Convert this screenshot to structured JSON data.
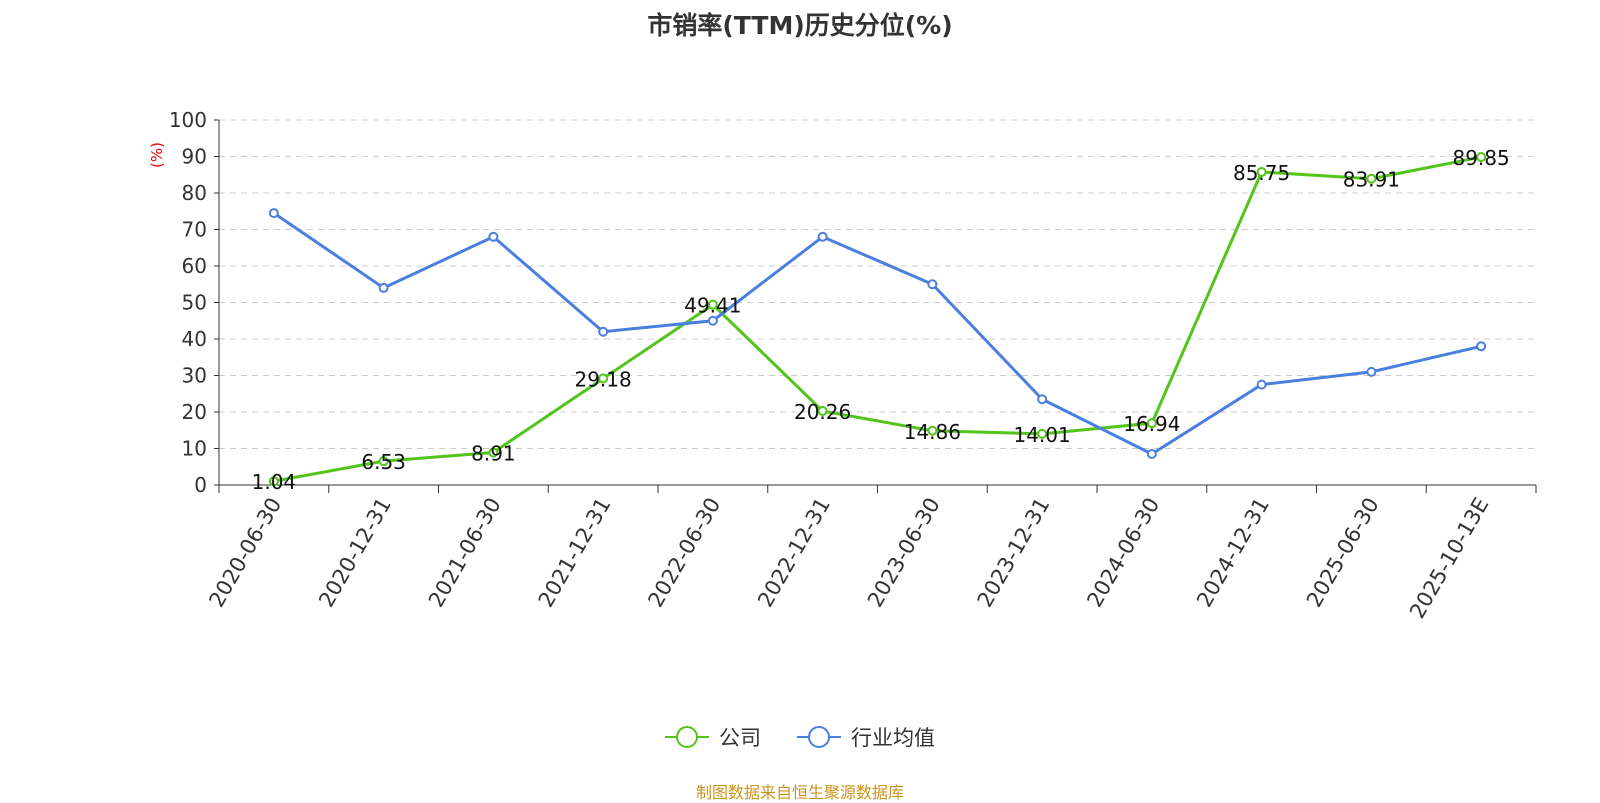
{
  "chart_data": {
    "type": "line",
    "title": "市销率(TTM)历史分位(%)",
    "ylabel": "(%)",
    "xlabel": "",
    "ylim": [
      0,
      100
    ],
    "yticks": [
      0,
      10,
      20,
      30,
      40,
      50,
      60,
      70,
      80,
      90,
      100
    ],
    "grid": true,
    "legend_position": "bottom",
    "categories": [
      "2020-06-30",
      "2020-12-31",
      "2021-06-30",
      "2021-12-31",
      "2022-06-30",
      "2022-12-31",
      "2023-06-30",
      "2023-12-31",
      "2024-06-30",
      "2024-12-31",
      "2025-06-30",
      "2025-10-13E"
    ],
    "series": [
      {
        "name": "公司",
        "color": "#52c41a",
        "labels": true,
        "values": [
          1.04,
          6.53,
          8.91,
          29.18,
          49.41,
          20.26,
          14.86,
          14.01,
          16.94,
          85.75,
          83.91,
          89.85
        ]
      },
      {
        "name": "行业均值",
        "color": "#4a7fe0",
        "labels": false,
        "values": [
          74.5,
          54.0,
          68.0,
          42.0,
          45.0,
          68.0,
          55.0,
          23.5,
          8.5,
          27.5,
          31.0,
          38.0
        ]
      }
    ]
  },
  "footer": "制图数据来自恒生聚源数据库"
}
